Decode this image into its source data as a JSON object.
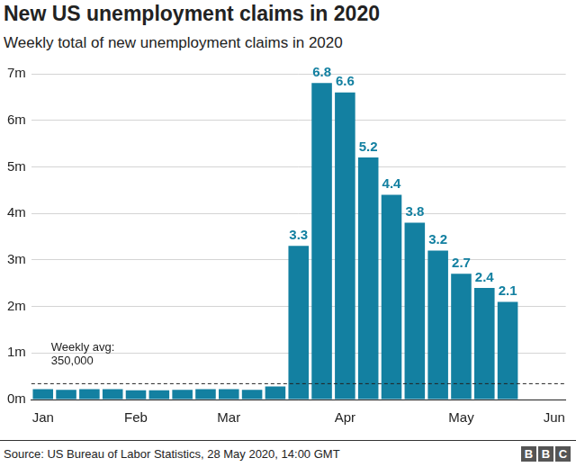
{
  "chart_data": {
    "type": "bar",
    "title": "New US unemployment claims in 2020",
    "subtitle": "Weekly total of new unemployment claims in 2020",
    "categories": [
      "Jan",
      null,
      null,
      null,
      "Feb",
      null,
      null,
      null,
      "Mar",
      null,
      null,
      null,
      null,
      "Apr",
      null,
      null,
      null,
      null,
      "May",
      null,
      null,
      null,
      "Jun"
    ],
    "values": [
      0.22,
      0.21,
      0.22,
      0.22,
      0.2,
      0.2,
      0.21,
      0.22,
      0.22,
      0.21,
      0.28,
      3.3,
      6.8,
      6.6,
      5.2,
      4.4,
      3.8,
      3.2,
      2.7,
      2.4,
      2.1,
      null,
      null
    ],
    "value_labels": [
      null,
      null,
      null,
      null,
      null,
      null,
      null,
      null,
      null,
      null,
      null,
      "3.3",
      "6.8",
      "6.6",
      "5.2",
      "4.4",
      "3.8",
      "3.2",
      "2.7",
      "2.4",
      "2.1",
      null,
      null
    ],
    "data_labels": true,
    "color": "#1380a1",
    "ylim": [
      0,
      7
    ],
    "yticks": [
      {
        "value": 0,
        "label": "0m"
      },
      {
        "value": 1,
        "label": "1m"
      },
      {
        "value": 2,
        "label": "2m"
      },
      {
        "value": 3,
        "label": "3m"
      },
      {
        "value": 4,
        "label": "4m"
      },
      {
        "value": 5,
        "label": "5m"
      },
      {
        "value": 6,
        "label": "6m"
      },
      {
        "value": 7,
        "label": "7m"
      }
    ],
    "grid": true,
    "annotation": {
      "text": [
        "Weekly avg:",
        "350,000"
      ],
      "value": 0.35,
      "line_style": "dashed"
    },
    "source": "Source: US Bureau of Labor Statistics, 28 May 2020, 14:00 GMT",
    "logo": "BBC"
  }
}
